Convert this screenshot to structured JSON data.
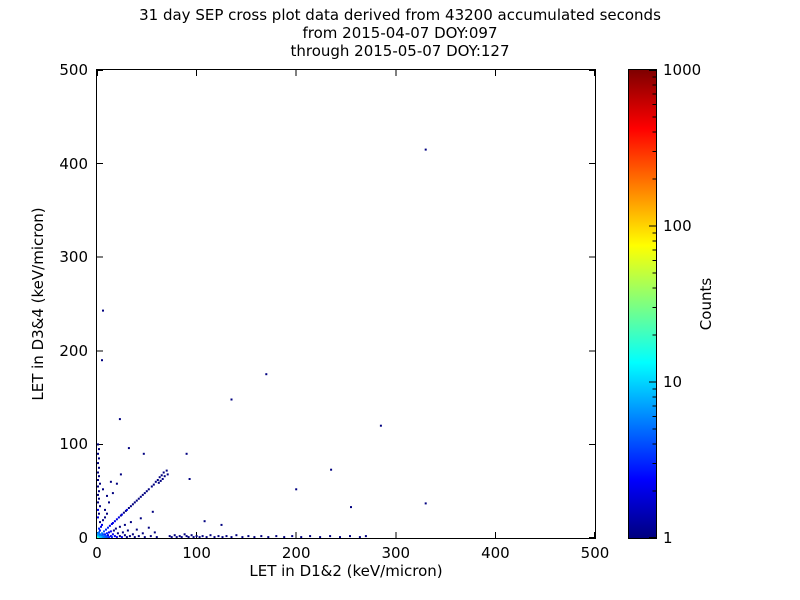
{
  "title": {
    "line1": "31 day SEP cross plot data derived from 43200 accumulated seconds",
    "line2": "from 2015-04-07 DOY:097",
    "line3": "through 2015-05-07 DOY:127"
  },
  "chart_data": {
    "type": "scatter",
    "title": "31 day SEP cross plot data derived from 43200 accumulated seconds from 2015-04-07 DOY:097 through 2015-05-07 DOY:127",
    "xlabel": "LET in D1&2 (keV/micron)",
    "ylabel": "LET in D3&4 (keV/micron)",
    "xlim": [
      0,
      500
    ],
    "ylim": [
      0,
      500
    ],
    "x_ticks": [
      0,
      100,
      200,
      300,
      400,
      500
    ],
    "y_ticks": [
      0,
      100,
      200,
      300,
      400,
      500
    ],
    "grid": false,
    "colorbar": {
      "label": "Counts",
      "scale": "log",
      "range": [
        1,
        1000
      ],
      "ticks": [
        1,
        10,
        100,
        1000
      ],
      "colormap": "jet"
    },
    "points": [
      [
        1,
        1,
        30
      ],
      [
        2,
        1,
        18
      ],
      [
        1,
        2,
        14
      ],
      [
        2,
        2,
        12
      ],
      [
        3,
        1,
        10
      ],
      [
        1,
        3,
        9
      ],
      [
        3,
        2,
        8
      ],
      [
        2,
        3,
        7
      ],
      [
        4,
        1,
        9
      ],
      [
        1,
        4,
        7
      ],
      [
        4,
        3,
        6
      ],
      [
        3,
        4,
        5
      ],
      [
        5,
        1,
        8
      ],
      [
        1,
        5,
        6
      ],
      [
        5,
        3,
        5
      ],
      [
        5,
        5,
        6
      ],
      [
        6,
        1,
        6
      ],
      [
        6,
        4,
        4
      ],
      [
        2,
        6,
        5
      ],
      [
        7,
        2,
        5
      ],
      [
        7,
        7,
        4
      ],
      [
        8,
        1,
        5
      ],
      [
        8,
        4,
        3
      ],
      [
        3,
        8,
        3
      ],
      [
        9,
        2,
        4
      ],
      [
        9,
        9,
        3
      ],
      [
        10,
        1,
        4
      ],
      [
        10,
        5,
        3
      ],
      [
        2,
        10,
        3
      ],
      [
        11,
        3,
        2
      ],
      [
        11,
        11,
        3
      ],
      [
        12,
        1,
        3
      ],
      [
        12,
        6,
        2
      ],
      [
        4,
        12,
        2
      ],
      [
        13,
        13,
        2
      ],
      [
        14,
        2,
        2
      ],
      [
        14,
        7,
        2
      ],
      [
        15,
        1,
        3
      ],
      [
        15,
        15,
        2
      ],
      [
        5,
        14,
        2
      ],
      [
        16,
        4,
        2
      ],
      [
        16,
        16,
        2
      ],
      [
        17,
        8,
        1
      ],
      [
        18,
        2,
        2
      ],
      [
        18,
        18,
        2
      ],
      [
        3,
        17,
        1
      ],
      [
        19,
        10,
        1
      ],
      [
        20,
        1,
        2
      ],
      [
        20,
        20,
        2
      ],
      [
        6,
        19,
        1
      ],
      [
        21,
        5,
        1
      ],
      [
        22,
        22,
        2
      ],
      [
        23,
        2,
        1
      ],
      [
        23,
        12,
        1
      ],
      [
        24,
        24,
        1
      ],
      [
        8,
        22,
        1
      ],
      [
        25,
        1,
        2
      ],
      [
        25,
        25,
        2
      ],
      [
        26,
        6,
        1
      ],
      [
        27,
        27,
        1
      ],
      [
        28,
        3,
        1
      ],
      [
        28,
        14,
        1
      ],
      [
        29,
        29,
        1
      ],
      [
        10,
        26,
        1
      ],
      [
        30,
        1,
        1
      ],
      [
        30,
        30,
        2
      ],
      [
        31,
        8,
        1
      ],
      [
        32,
        32,
        1
      ],
      [
        33,
        2,
        1
      ],
      [
        34,
        17,
        1
      ],
      [
        34,
        34,
        1
      ],
      [
        36,
        4,
        1
      ],
      [
        36,
        36,
        1
      ],
      [
        38,
        1,
        1
      ],
      [
        38,
        38,
        1
      ],
      [
        40,
        9,
        1
      ],
      [
        40,
        40,
        1
      ],
      [
        42,
        2,
        1
      ],
      [
        42,
        42,
        1
      ],
      [
        44,
        21,
        1
      ],
      [
        44,
        44,
        1
      ],
      [
        46,
        5,
        1
      ],
      [
        46,
        46,
        1
      ],
      [
        48,
        1,
        1
      ],
      [
        48,
        48,
        1
      ],
      [
        50,
        50,
        1
      ],
      [
        52,
        11,
        1
      ],
      [
        52,
        52,
        1
      ],
      [
        54,
        2,
        1
      ],
      [
        55,
        55,
        1
      ],
      [
        56,
        28,
        1
      ],
      [
        57,
        57,
        1
      ],
      [
        58,
        6,
        1
      ],
      [
        59,
        60,
        1
      ],
      [
        60,
        1,
        1
      ],
      [
        61,
        62,
        1
      ],
      [
        62,
        59,
        1
      ],
      [
        63,
        65,
        1
      ],
      [
        64,
        61,
        1
      ],
      [
        65,
        67,
        1
      ],
      [
        66,
        63,
        1
      ],
      [
        67,
        70,
        1
      ],
      [
        68,
        66,
        1
      ],
      [
        70,
        72,
        1
      ],
      [
        71,
        68,
        1
      ],
      [
        73,
        2,
        1
      ],
      [
        75,
        1,
        1
      ],
      [
        78,
        3,
        1
      ],
      [
        80,
        1,
        1
      ],
      [
        83,
        2,
        1
      ],
      [
        85,
        1,
        1
      ],
      [
        88,
        4,
        1
      ],
      [
        90,
        2,
        1
      ],
      [
        92,
        1,
        1
      ],
      [
        95,
        3,
        1
      ],
      [
        97,
        1,
        1
      ],
      [
        100,
        2,
        1
      ],
      [
        103,
        1,
        1
      ],
      [
        106,
        2,
        1
      ],
      [
        110,
        1,
        1
      ],
      [
        114,
        3,
        1
      ],
      [
        118,
        1,
        1
      ],
      [
        122,
        2,
        1
      ],
      [
        126,
        1,
        1
      ],
      [
        130,
        2,
        1
      ],
      [
        135,
        1,
        1
      ],
      [
        140,
        3,
        1
      ],
      [
        146,
        1,
        1
      ],
      [
        152,
        2,
        1
      ],
      [
        158,
        1,
        1
      ],
      [
        165,
        2,
        1
      ],
      [
        172,
        1,
        1
      ],
      [
        180,
        2,
        1
      ],
      [
        188,
        1,
        1
      ],
      [
        196,
        2,
        1
      ],
      [
        205,
        1,
        1
      ],
      [
        214,
        2,
        1
      ],
      [
        224,
        1,
        1
      ],
      [
        234,
        2,
        1
      ],
      [
        244,
        1,
        1
      ],
      [
        254,
        2,
        1
      ],
      [
        264,
        1,
        1
      ],
      [
        270,
        2,
        1
      ],
      [
        1,
        22,
        2
      ],
      [
        2,
        26,
        1
      ],
      [
        1,
        30,
        2
      ],
      [
        3,
        34,
        1
      ],
      [
        1,
        38,
        1
      ],
      [
        2,
        42,
        1
      ],
      [
        1,
        46,
        1
      ],
      [
        2,
        50,
        1
      ],
      [
        1,
        55,
        1
      ],
      [
        3,
        58,
        1
      ],
      [
        1,
        62,
        1
      ],
      [
        2,
        66,
        1
      ],
      [
        1,
        70,
        1
      ],
      [
        2,
        75,
        1
      ],
      [
        1,
        80,
        1
      ],
      [
        2,
        85,
        1
      ],
      [
        1,
        90,
        1
      ],
      [
        2,
        95,
        1
      ],
      [
        1,
        100,
        1
      ],
      [
        8,
        30,
        1
      ],
      [
        12,
        38,
        1
      ],
      [
        16,
        48,
        1
      ],
      [
        20,
        58,
        1
      ],
      [
        24,
        68,
        1
      ],
      [
        32,
        96,
        1
      ],
      [
        47,
        90,
        1
      ],
      [
        10,
        45,
        1
      ],
      [
        14,
        60,
        1
      ],
      [
        6,
        52,
        1
      ],
      [
        23,
        127,
        1
      ],
      [
        5,
        190,
        1
      ],
      [
        6,
        243,
        1
      ],
      [
        90,
        90,
        1
      ],
      [
        93,
        63,
        1
      ],
      [
        108,
        18,
        1
      ],
      [
        125,
        14,
        1
      ],
      [
        135,
        148,
        1
      ],
      [
        170,
        175,
        1
      ],
      [
        200,
        52,
        1
      ],
      [
        235,
        73,
        1
      ],
      [
        255,
        33,
        1
      ],
      [
        285,
        120,
        1
      ],
      [
        330,
        415,
        1
      ],
      [
        330,
        37,
        1
      ]
    ]
  }
}
